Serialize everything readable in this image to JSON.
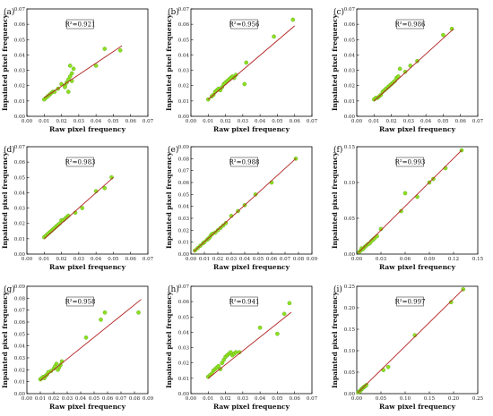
{
  "figure": {
    "xlabel": "Raw pixel frequency",
    "ylabel": "Inpainted pixel frequency"
  },
  "colors": {
    "points": "#8ee021",
    "point_edge": "#55a512",
    "fit_line": "#b22222"
  },
  "chart_data": [
    {
      "type": "scatter",
      "panel": "(a)",
      "r2_label": "R²=0.921",
      "xlim": [
        0,
        0.07
      ],
      "ylim": [
        0,
        0.07
      ],
      "xticks": [
        "0.00",
        "0.01",
        "0.02",
        "0.03",
        "0.04",
        "0.05",
        "0.06",
        "0.07"
      ],
      "yticks": [
        "0.00",
        "0.01",
        "0.02",
        "0.03",
        "0.04",
        "0.05",
        "0.06",
        "0.07"
      ],
      "fit": [
        [
          0.01,
          0.012
        ],
        [
          0.055,
          0.046
        ]
      ],
      "points": [
        [
          0.01,
          0.011
        ],
        [
          0.011,
          0.012
        ],
        [
          0.012,
          0.013
        ],
        [
          0.013,
          0.014
        ],
        [
          0.014,
          0.015
        ],
        [
          0.015,
          0.016
        ],
        [
          0.016,
          0.016
        ],
        [
          0.018,
          0.018
        ],
        [
          0.02,
          0.021
        ],
        [
          0.022,
          0.02
        ],
        [
          0.023,
          0.022
        ],
        [
          0.024,
          0.024
        ],
        [
          0.025,
          0.026
        ],
        [
          0.026,
          0.028
        ],
        [
          0.027,
          0.031
        ],
        [
          0.025,
          0.033
        ],
        [
          0.024,
          0.016
        ],
        [
          0.022,
          0.019
        ],
        [
          0.026,
          0.023
        ],
        [
          0.04,
          0.033
        ],
        [
          0.045,
          0.044
        ],
        [
          0.054,
          0.043
        ]
      ]
    },
    {
      "type": "scatter",
      "panel": "(b)",
      "r2_label": "R²=0.956",
      "xlim": [
        0,
        0.07
      ],
      "ylim": [
        0,
        0.07
      ],
      "xticks": [
        "0.00",
        "0.01",
        "0.02",
        "0.03",
        "0.04",
        "0.05",
        "0.06",
        "0.07"
      ],
      "yticks": [
        "0.00",
        "0.01",
        "0.02",
        "0.03",
        "0.04",
        "0.05",
        "0.06",
        "0.07"
      ],
      "fit": [
        [
          0.01,
          0.011
        ],
        [
          0.06,
          0.059
        ]
      ],
      "points": [
        [
          0.01,
          0.011
        ],
        [
          0.012,
          0.013
        ],
        [
          0.013,
          0.014
        ],
        [
          0.014,
          0.016
        ],
        [
          0.015,
          0.017
        ],
        [
          0.016,
          0.018
        ],
        [
          0.017,
          0.017
        ],
        [
          0.018,
          0.019
        ],
        [
          0.019,
          0.021
        ],
        [
          0.02,
          0.022
        ],
        [
          0.021,
          0.023
        ],
        [
          0.022,
          0.024
        ],
        [
          0.023,
          0.025
        ],
        [
          0.024,
          0.026
        ],
        [
          0.025,
          0.025
        ],
        [
          0.026,
          0.027
        ],
        [
          0.032,
          0.035
        ],
        [
          0.031,
          0.021
        ],
        [
          0.048,
          0.052
        ],
        [
          0.059,
          0.063
        ]
      ]
    },
    {
      "type": "scatter",
      "panel": "(c)",
      "r2_label": "R²=0.986",
      "xlim": [
        0,
        0.07
      ],
      "ylim": [
        0,
        0.07
      ],
      "xticks": [
        "0.00",
        "0.01",
        "0.02",
        "0.03",
        "0.04",
        "0.05",
        "0.06",
        "0.07"
      ],
      "yticks": [
        "0.00",
        "0.01",
        "0.02",
        "0.03",
        "0.04",
        "0.05",
        "0.06",
        "0.07"
      ],
      "fit": [
        [
          0.01,
          0.01
        ],
        [
          0.056,
          0.057
        ]
      ],
      "points": [
        [
          0.01,
          0.011
        ],
        [
          0.011,
          0.012
        ],
        [
          0.012,
          0.012
        ],
        [
          0.013,
          0.013
        ],
        [
          0.014,
          0.014
        ],
        [
          0.015,
          0.016
        ],
        [
          0.016,
          0.017
        ],
        [
          0.017,
          0.018
        ],
        [
          0.018,
          0.019
        ],
        [
          0.019,
          0.02
        ],
        [
          0.02,
          0.021
        ],
        [
          0.021,
          0.022
        ],
        [
          0.022,
          0.023
        ],
        [
          0.023,
          0.025
        ],
        [
          0.024,
          0.026
        ],
        [
          0.025,
          0.031
        ],
        [
          0.028,
          0.029
        ],
        [
          0.031,
          0.033
        ],
        [
          0.035,
          0.036
        ],
        [
          0.05,
          0.053
        ],
        [
          0.055,
          0.057
        ]
      ]
    },
    {
      "type": "scatter",
      "panel": "(d)",
      "r2_label": "R²=0.983",
      "xlim": [
        0,
        0.07
      ],
      "ylim": [
        0,
        0.07
      ],
      "xticks": [
        "0.00",
        "0.01",
        "0.02",
        "0.03",
        "0.04",
        "0.05",
        "0.06",
        "0.07"
      ],
      "yticks": [
        "0.00",
        "0.01",
        "0.02",
        "0.03",
        "0.04",
        "0.05",
        "0.06",
        "0.07"
      ],
      "fit": [
        [
          0.01,
          0.01
        ],
        [
          0.05,
          0.05
        ]
      ],
      "points": [
        [
          0.01,
          0.011
        ],
        [
          0.011,
          0.012
        ],
        [
          0.012,
          0.013
        ],
        [
          0.013,
          0.014
        ],
        [
          0.014,
          0.015
        ],
        [
          0.015,
          0.016
        ],
        [
          0.016,
          0.017
        ],
        [
          0.017,
          0.018
        ],
        [
          0.018,
          0.019
        ],
        [
          0.019,
          0.02
        ],
        [
          0.02,
          0.022
        ],
        [
          0.021,
          0.022
        ],
        [
          0.022,
          0.023
        ],
        [
          0.023,
          0.024
        ],
        [
          0.024,
          0.025
        ],
        [
          0.028,
          0.027
        ],
        [
          0.032,
          0.03
        ],
        [
          0.04,
          0.041
        ],
        [
          0.045,
          0.043
        ],
        [
          0.049,
          0.05
        ]
      ]
    },
    {
      "type": "scatter",
      "panel": "(e)",
      "r2_label": "R²=0.988",
      "xlim": [
        0,
        0.09
      ],
      "ylim": [
        0,
        0.09
      ],
      "xticks": [
        "0.00",
        "0.01",
        "0.02",
        "0.03",
        "0.04",
        "0.05",
        "0.06",
        "0.07",
        "0.08",
        "0.09"
      ],
      "yticks": [
        "0.00",
        "0.01",
        "0.02",
        "0.03",
        "0.04",
        "0.05",
        "0.06",
        "0.07",
        "0.08",
        "0.09"
      ],
      "fit": [
        [
          0.002,
          0.002
        ],
        [
          0.078,
          0.08
        ]
      ],
      "points": [
        [
          0.003,
          0.003
        ],
        [
          0.005,
          0.005
        ],
        [
          0.007,
          0.007
        ],
        [
          0.009,
          0.009
        ],
        [
          0.01,
          0.01
        ],
        [
          0.012,
          0.012
        ],
        [
          0.013,
          0.013
        ],
        [
          0.014,
          0.014
        ],
        [
          0.015,
          0.016
        ],
        [
          0.016,
          0.017
        ],
        [
          0.018,
          0.018
        ],
        [
          0.02,
          0.02
        ],
        [
          0.022,
          0.022
        ],
        [
          0.024,
          0.024
        ],
        [
          0.026,
          0.026
        ],
        [
          0.03,
          0.032
        ],
        [
          0.035,
          0.036
        ],
        [
          0.04,
          0.041
        ],
        [
          0.048,
          0.05
        ],
        [
          0.06,
          0.06
        ],
        [
          0.078,
          0.08
        ]
      ]
    },
    {
      "type": "scatter",
      "panel": "(f)",
      "r2_label": "R²=0.993",
      "xlim": [
        0,
        0.15
      ],
      "ylim": [
        0,
        0.15
      ],
      "xticks": [
        "0.00",
        "0.03",
        "0.06",
        "0.09",
        "0.12",
        "0.15"
      ],
      "yticks": [
        "0.00",
        "0.05",
        "0.10",
        "0.15"
      ],
      "fit": [
        [
          0.002,
          0.002
        ],
        [
          0.13,
          0.145
        ]
      ],
      "points": [
        [
          0.003,
          0.003
        ],
        [
          0.005,
          0.005
        ],
        [
          0.006,
          0.008
        ],
        [
          0.008,
          0.007
        ],
        [
          0.01,
          0.01
        ],
        [
          0.012,
          0.012
        ],
        [
          0.014,
          0.014
        ],
        [
          0.016,
          0.015
        ],
        [
          0.018,
          0.018
        ],
        [
          0.02,
          0.02
        ],
        [
          0.022,
          0.022
        ],
        [
          0.025,
          0.025
        ],
        [
          0.03,
          0.035
        ],
        [
          0.055,
          0.06
        ],
        [
          0.06,
          0.085
        ],
        [
          0.075,
          0.08
        ],
        [
          0.09,
          0.1
        ],
        [
          0.095,
          0.105
        ],
        [
          0.11,
          0.12
        ],
        [
          0.13,
          0.145
        ]
      ]
    },
    {
      "type": "scatter",
      "panel": "(g)",
      "r2_label": "R²=0.958",
      "xlim": [
        0,
        0.09
      ],
      "ylim": [
        0,
        0.09
      ],
      "xticks": [
        "0.00",
        "0.01",
        "0.02",
        "0.03",
        "0.04",
        "0.05",
        "0.06",
        "0.07",
        "0.08",
        "0.09"
      ],
      "yticks": [
        "0.00",
        "0.01",
        "0.02",
        "0.03",
        "0.04",
        "0.05",
        "0.06",
        "0.07",
        "0.08",
        "0.09"
      ],
      "fit": [
        [
          0.01,
          0.011
        ],
        [
          0.085,
          0.079
        ]
      ],
      "points": [
        [
          0.01,
          0.012
        ],
        [
          0.011,
          0.013
        ],
        [
          0.012,
          0.014
        ],
        [
          0.013,
          0.013
        ],
        [
          0.014,
          0.015
        ],
        [
          0.015,
          0.016
        ],
        [
          0.016,
          0.018
        ],
        [
          0.018,
          0.019
        ],
        [
          0.02,
          0.021
        ],
        [
          0.021,
          0.023
        ],
        [
          0.022,
          0.025
        ],
        [
          0.023,
          0.02
        ],
        [
          0.024,
          0.022
        ],
        [
          0.025,
          0.024
        ],
        [
          0.026,
          0.027
        ],
        [
          0.044,
          0.047
        ],
        [
          0.055,
          0.062
        ],
        [
          0.058,
          0.068
        ],
        [
          0.083,
          0.068
        ]
      ]
    },
    {
      "type": "scatter",
      "panel": "(h)",
      "r2_label": "R²=0.941",
      "xlim": [
        0,
        0.07
      ],
      "ylim": [
        0,
        0.07
      ],
      "xticks": [
        "0.00",
        "0.01",
        "0.02",
        "0.03",
        "0.04",
        "0.05",
        "0.06",
        "0.07"
      ],
      "yticks": [
        "0.00",
        "0.01",
        "0.02",
        "0.03",
        "0.04",
        "0.05",
        "0.06",
        "0.07"
      ],
      "fit": [
        [
          0.01,
          0.01
        ],
        [
          0.058,
          0.053
        ]
      ],
      "points": [
        [
          0.01,
          0.011
        ],
        [
          0.011,
          0.012
        ],
        [
          0.012,
          0.013
        ],
        [
          0.013,
          0.015
        ],
        [
          0.014,
          0.016
        ],
        [
          0.015,
          0.017
        ],
        [
          0.016,
          0.018
        ],
        [
          0.017,
          0.016
        ],
        [
          0.018,
          0.02
        ],
        [
          0.019,
          0.022
        ],
        [
          0.02,
          0.024
        ],
        [
          0.021,
          0.025
        ],
        [
          0.022,
          0.026
        ],
        [
          0.023,
          0.027
        ],
        [
          0.024,
          0.025
        ],
        [
          0.025,
          0.026
        ],
        [
          0.026,
          0.027
        ],
        [
          0.028,
          0.027
        ],
        [
          0.04,
          0.043
        ],
        [
          0.05,
          0.039
        ],
        [
          0.054,
          0.052
        ],
        [
          0.057,
          0.059
        ]
      ]
    },
    {
      "type": "scatter",
      "panel": "(i)",
      "r2_label": "R²=0.997",
      "xlim": [
        0,
        0.25
      ],
      "ylim": [
        0,
        0.25
      ],
      "xticks": [
        "0.00",
        "0.05",
        "0.10",
        "0.15",
        "0.20",
        "0.25"
      ],
      "yticks": [
        "0.00",
        "0.05",
        "0.10",
        "0.15",
        "0.20",
        "0.25"
      ],
      "fit": [
        [
          0.002,
          0.002
        ],
        [
          0.22,
          0.243
        ]
      ],
      "points": [
        [
          0.003,
          0.003
        ],
        [
          0.005,
          0.005
        ],
        [
          0.007,
          0.006
        ],
        [
          0.009,
          0.009
        ],
        [
          0.01,
          0.011
        ],
        [
          0.012,
          0.012
        ],
        [
          0.014,
          0.015
        ],
        [
          0.016,
          0.016
        ],
        [
          0.018,
          0.018
        ],
        [
          0.02,
          0.02
        ],
        [
          0.055,
          0.055
        ],
        [
          0.065,
          0.062
        ],
        [
          0.12,
          0.136
        ],
        [
          0.195,
          0.213
        ],
        [
          0.22,
          0.243
        ]
      ]
    }
  ]
}
